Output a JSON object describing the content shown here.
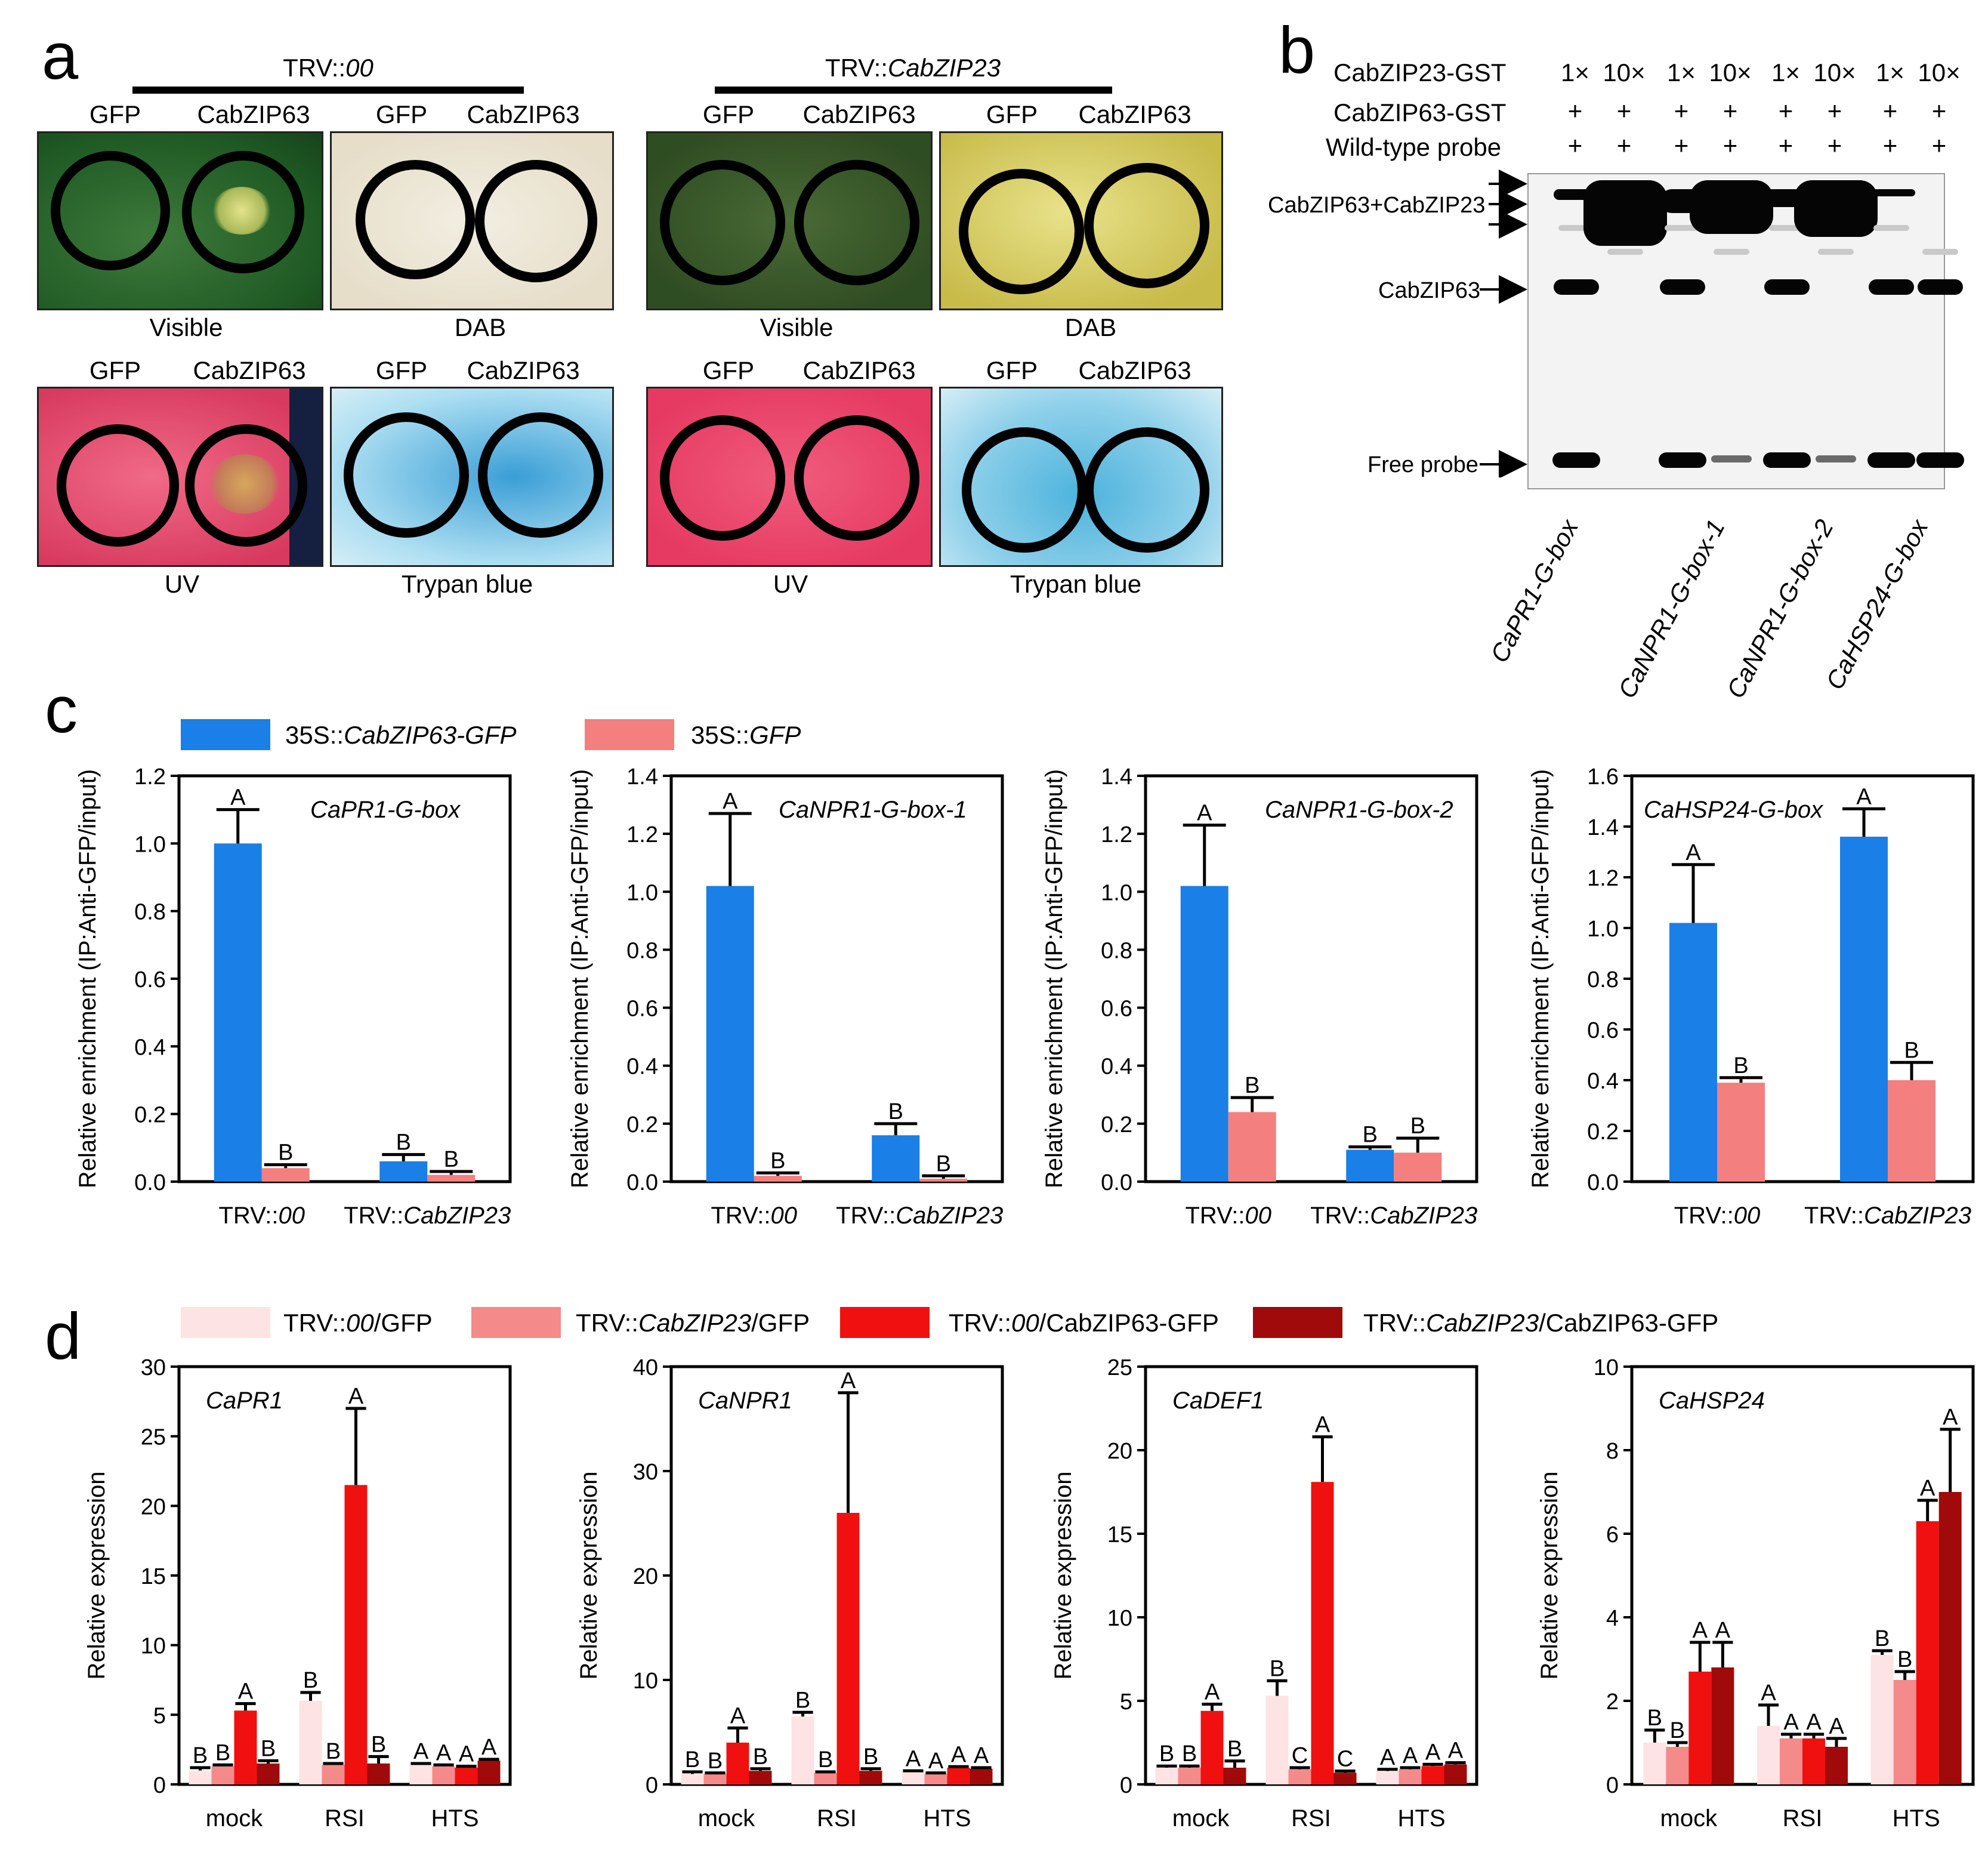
{
  "panel_a": {
    "letter": "a",
    "groups": [
      {
        "title_prefix": "TRV::",
        "title_italic": "00"
      },
      {
        "title_prefix": "TRV::",
        "title_italic": "CabZIP23"
      }
    ],
    "col_labels": [
      "GFP",
      "CabZIP63"
    ],
    "image_labels": {
      "visible": "Visible",
      "dab": "DAB",
      "uv": "UV",
      "trypan": "Trypan blue"
    }
  },
  "panel_b": {
    "letter": "b",
    "row_labels": [
      "CabZIP23-GST",
      "CabZIP63-GST",
      "Wild-type probe"
    ],
    "ratios": [
      "1×",
      "10×",
      "1×",
      "10×",
      "1×",
      "10×",
      "1×",
      "10×"
    ],
    "plus": "+",
    "band_labels": {
      "complex": "CabZIP63+CabZIP23",
      "single": "CabZIP63",
      "free": "Free probe"
    },
    "probes": [
      "CaPR1-G-box",
      "CaNPR1-G-box-1",
      "CaNPR1-G-box-2",
      "CaHSP24-G-box"
    ]
  },
  "panel_c": {
    "letter": "c",
    "legend": [
      {
        "prefix": "35S::",
        "italic": "CabZIP63-GFP",
        "color": "#1a7fe6"
      },
      {
        "prefix": "35S::",
        "italic": "GFP",
        "color": "#f47f7f"
      }
    ],
    "ylabel": "Relative enrichment (IP:Anti-GFP/input)",
    "categories": [
      {
        "prefix": "TRV::",
        "italic": "00"
      },
      {
        "prefix": "TRV::",
        "italic": "CabZIP23"
      }
    ]
  },
  "panel_d": {
    "letter": "d",
    "legend": [
      {
        "parts": [
          {
            "t": "TRV::"
          },
          {
            "t": "00",
            "i": true
          },
          {
            "t": "/GFP"
          }
        ],
        "color": "#fde3e3"
      },
      {
        "parts": [
          {
            "t": "TRV::"
          },
          {
            "t": "CabZIP23",
            "i": true
          },
          {
            "t": "/GFP"
          }
        ],
        "color": "#f48a8a"
      },
      {
        "parts": [
          {
            "t": "TRV::"
          },
          {
            "t": "00",
            "i": true
          },
          {
            "t": "/CabZIP63-GFP"
          }
        ],
        "color": "#f01010"
      },
      {
        "parts": [
          {
            "t": "TRV::"
          },
          {
            "t": "CabZIP23",
            "i": true
          },
          {
            "t": "/CabZIP63-GFP"
          }
        ],
        "color": "#a00a0a"
      }
    ],
    "ylabel": "Relative expression",
    "categories": [
      "mock",
      "RSI",
      "HTS"
    ]
  },
  "chart_data": [
    {
      "id": "c1",
      "type": "bar",
      "title": "CaPR1-G-box",
      "ylim": [
        0,
        1.2
      ],
      "yticks": [
        "0.0",
        "0.2",
        "0.4",
        "0.6",
        "0.8",
        "1.0",
        "1.2"
      ],
      "series": [
        {
          "name": "35S::CabZIP63-GFP",
          "values": [
            1.0,
            0.06
          ],
          "errors": [
            0.1,
            0.02
          ],
          "letters": [
            "A",
            "B"
          ]
        },
        {
          "name": "35S::GFP",
          "values": [
            0.04,
            0.02
          ],
          "errors": [
            0.01,
            0.01
          ],
          "letters": [
            "B",
            "B"
          ]
        }
      ]
    },
    {
      "id": "c2",
      "type": "bar",
      "title": "CaNPR1-G-box-1",
      "ylim": [
        0,
        1.4
      ],
      "yticks": [
        "0.0",
        "0.2",
        "0.4",
        "0.6",
        "0.8",
        "1.0",
        "1.2",
        "1.4"
      ],
      "series": [
        {
          "name": "35S::CabZIP63-GFP",
          "values": [
            1.02,
            0.16
          ],
          "errors": [
            0.25,
            0.04
          ],
          "letters": [
            "A",
            "B"
          ]
        },
        {
          "name": "35S::GFP",
          "values": [
            0.02,
            0.01
          ],
          "errors": [
            0.01,
            0.01
          ],
          "letters": [
            "B",
            "B"
          ]
        }
      ]
    },
    {
      "id": "c3",
      "type": "bar",
      "title": "CaNPR1-G-box-2",
      "ylim": [
        0,
        1.4
      ],
      "yticks": [
        "0.0",
        "0.2",
        "0.4",
        "0.6",
        "0.8",
        "1.0",
        "1.2",
        "1.4"
      ],
      "series": [
        {
          "name": "35S::CabZIP63-GFP",
          "values": [
            1.02,
            0.11
          ],
          "errors": [
            0.21,
            0.01
          ],
          "letters": [
            "A",
            "B"
          ]
        },
        {
          "name": "35S::GFP",
          "values": [
            0.24,
            0.1
          ],
          "errors": [
            0.05,
            0.05
          ],
          "letters": [
            "B",
            "B"
          ]
        }
      ]
    },
    {
      "id": "c4",
      "type": "bar",
      "title": "CaHSP24-G-box",
      "ylim": [
        0,
        1.6
      ],
      "yticks": [
        "0.0",
        "0.2",
        "0.4",
        "0.6",
        "0.8",
        "1.0",
        "1.2",
        "1.4",
        "1.6"
      ],
      "series": [
        {
          "name": "35S::CabZIP63-GFP",
          "values": [
            1.02,
            1.36
          ],
          "errors": [
            0.23,
            0.11
          ],
          "letters": [
            "A",
            "A"
          ]
        },
        {
          "name": "35S::GFP",
          "values": [
            0.39,
            0.4
          ],
          "errors": [
            0.02,
            0.07
          ],
          "letters": [
            "B",
            "B"
          ]
        }
      ]
    },
    {
      "id": "d1",
      "type": "bar",
      "title": "CaPR1",
      "ylim": [
        0,
        30
      ],
      "yticks": [
        "0",
        "5",
        "10",
        "15",
        "20",
        "25",
        "30"
      ],
      "series": [
        {
          "name": "TRV::00/GFP",
          "values": [
            1.0,
            6.0,
            1.4
          ],
          "errors": [
            0.2,
            0.6,
            0.1
          ],
          "letters": [
            "B",
            "B",
            "A"
          ]
        },
        {
          "name": "TRV::CabZIP23/GFP",
          "values": [
            1.3,
            1.4,
            1.3
          ],
          "errors": [
            0.1,
            0.1,
            0.1
          ],
          "letters": [
            "B",
            "B",
            "A"
          ]
        },
        {
          "name": "TRV::00/CabZIP63-GFP",
          "values": [
            5.3,
            21.5,
            1.2
          ],
          "errors": [
            0.5,
            5.5,
            0.1
          ],
          "letters": [
            "A",
            "A",
            "A"
          ]
        },
        {
          "name": "TRV::CabZIP23/CabZIP63-GFP",
          "values": [
            1.5,
            1.5,
            1.7
          ],
          "errors": [
            0.2,
            0.5,
            0.1
          ],
          "letters": [
            "B",
            "B",
            "A"
          ]
        }
      ]
    },
    {
      "id": "d2",
      "type": "bar",
      "title": "CaNPR1",
      "ylim": [
        0,
        40
      ],
      "yticks": [
        "0",
        "10",
        "20",
        "30",
        "40"
      ],
      "series": [
        {
          "name": "TRV::00/GFP",
          "values": [
            1.0,
            6.5,
            1.2
          ],
          "errors": [
            0.2,
            0.4,
            0.1
          ],
          "letters": [
            "B",
            "B",
            "A"
          ]
        },
        {
          "name": "TRV::CabZIP23/GFP",
          "values": [
            1.0,
            1.1,
            1.0
          ],
          "errors": [
            0.1,
            0.1,
            0.1
          ],
          "letters": [
            "B",
            "B",
            "A"
          ]
        },
        {
          "name": "TRV::00/CabZIP63-GFP",
          "values": [
            4.0,
            26.0,
            1.6
          ],
          "errors": [
            1.4,
            11.5,
            0.1
          ],
          "letters": [
            "A",
            "A",
            "A"
          ]
        },
        {
          "name": "TRV::CabZIP23/CabZIP63-GFP",
          "values": [
            1.3,
            1.3,
            1.5
          ],
          "errors": [
            0.2,
            0.2,
            0.1
          ],
          "letters": [
            "B",
            "B",
            "A"
          ]
        }
      ]
    },
    {
      "id": "d3",
      "type": "bar",
      "title": "CaDEF1",
      "ylim": [
        0,
        25
      ],
      "yticks": [
        "0",
        "5",
        "10",
        "15",
        "20",
        "25"
      ],
      "series": [
        {
          "name": "TRV::00/GFP",
          "values": [
            1.0,
            5.3,
            0.8
          ],
          "errors": [
            0.1,
            0.9,
            0.1
          ],
          "letters": [
            "B",
            "B",
            "A"
          ]
        },
        {
          "name": "TRV::CabZIP23/GFP",
          "values": [
            1.0,
            0.9,
            0.9
          ],
          "errors": [
            0.1,
            0.1,
            0.1
          ],
          "letters": [
            "B",
            "C",
            "A"
          ]
        },
        {
          "name": "TRV::00/CabZIP63-GFP",
          "values": [
            4.4,
            18.1,
            1.1
          ],
          "errors": [
            0.4,
            2.7,
            0.1
          ],
          "letters": [
            "A",
            "A",
            "A"
          ]
        },
        {
          "name": "TRV::CabZIP23/CabZIP63-GFP",
          "values": [
            1.0,
            0.7,
            1.2
          ],
          "errors": [
            0.4,
            0.1,
            0.1
          ],
          "letters": [
            "B",
            "C",
            "A"
          ]
        }
      ]
    },
    {
      "id": "d4",
      "type": "bar",
      "title": "CaHSP24",
      "ylim": [
        0,
        10
      ],
      "yticks": [
        "0",
        "2",
        "4",
        "6",
        "8",
        "10"
      ],
      "series": [
        {
          "name": "TRV::00/GFP",
          "values": [
            1.0,
            1.4,
            3.1
          ],
          "errors": [
            0.3,
            0.5,
            0.1
          ],
          "letters": [
            "B",
            "A",
            "B"
          ]
        },
        {
          "name": "TRV::CabZIP23/GFP",
          "values": [
            0.9,
            1.1,
            2.5
          ],
          "errors": [
            0.1,
            0.1,
            0.2
          ],
          "letters": [
            "B",
            "A",
            "B"
          ]
        },
        {
          "name": "TRV::00/CabZIP63-GFP",
          "values": [
            2.7,
            1.1,
            6.3
          ],
          "errors": [
            0.7,
            0.1,
            0.5
          ],
          "letters": [
            "A",
            "A",
            "A"
          ]
        },
        {
          "name": "TRV::CabZIP23/CabZIP63-GFP",
          "values": [
            2.8,
            0.9,
            7.0
          ],
          "errors": [
            0.6,
            0.2,
            1.5
          ],
          "letters": [
            "A",
            "A",
            "A"
          ]
        }
      ]
    }
  ]
}
